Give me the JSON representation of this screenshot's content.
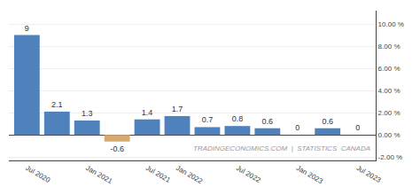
{
  "chart_data": {
    "type": "bar",
    "categories": [
      "Jul 2020",
      null,
      "Jan 2021",
      null,
      "Jul 2021",
      "Jan 2022",
      null,
      "Jul 2022",
      null,
      "Jan 2023",
      null,
      "Jul 2023"
    ],
    "values": [
      9.0,
      2.1,
      1.3,
      -0.6,
      1.4,
      1.7,
      0.7,
      0.8,
      0.6,
      0.0,
      0.6,
      0.0
    ],
    "colors": [
      "#4f81bd",
      "#4f81bd",
      "#4f81bd",
      "#d4aa70",
      "#4f81bd",
      "#4f81bd",
      "#4f81bd",
      "#4f81bd",
      "#4f81bd",
      "#4f81bd",
      "#4f81bd",
      "#4f81bd"
    ],
    "value_labels": [
      "9",
      "2.1",
      "1.3",
      "-0.6",
      "1.4",
      "1.7",
      "0.7",
      "0.8",
      "0.6",
      "0",
      "0.6",
      "0"
    ],
    "data_labels": true,
    "ylim": [
      -2.3,
      11.2
    ],
    "yticks": [
      {
        "value": -2,
        "label": "-2.00 %"
      },
      {
        "value": 0,
        "label": "0.00 %"
      },
      {
        "value": 2,
        "label": "2.00 %"
      },
      {
        "value": 4,
        "label": "4.00 %"
      },
      {
        "value": 6,
        "label": "6.00 %"
      },
      {
        "value": 8,
        "label": "8.00 %"
      },
      {
        "value": 10,
        "label": "10.00 %"
      }
    ],
    "grid": true,
    "annotations": [
      {
        "text": "TRADINGECONOMICS.COM  |  STATISTICS  CANADA"
      }
    ]
  }
}
